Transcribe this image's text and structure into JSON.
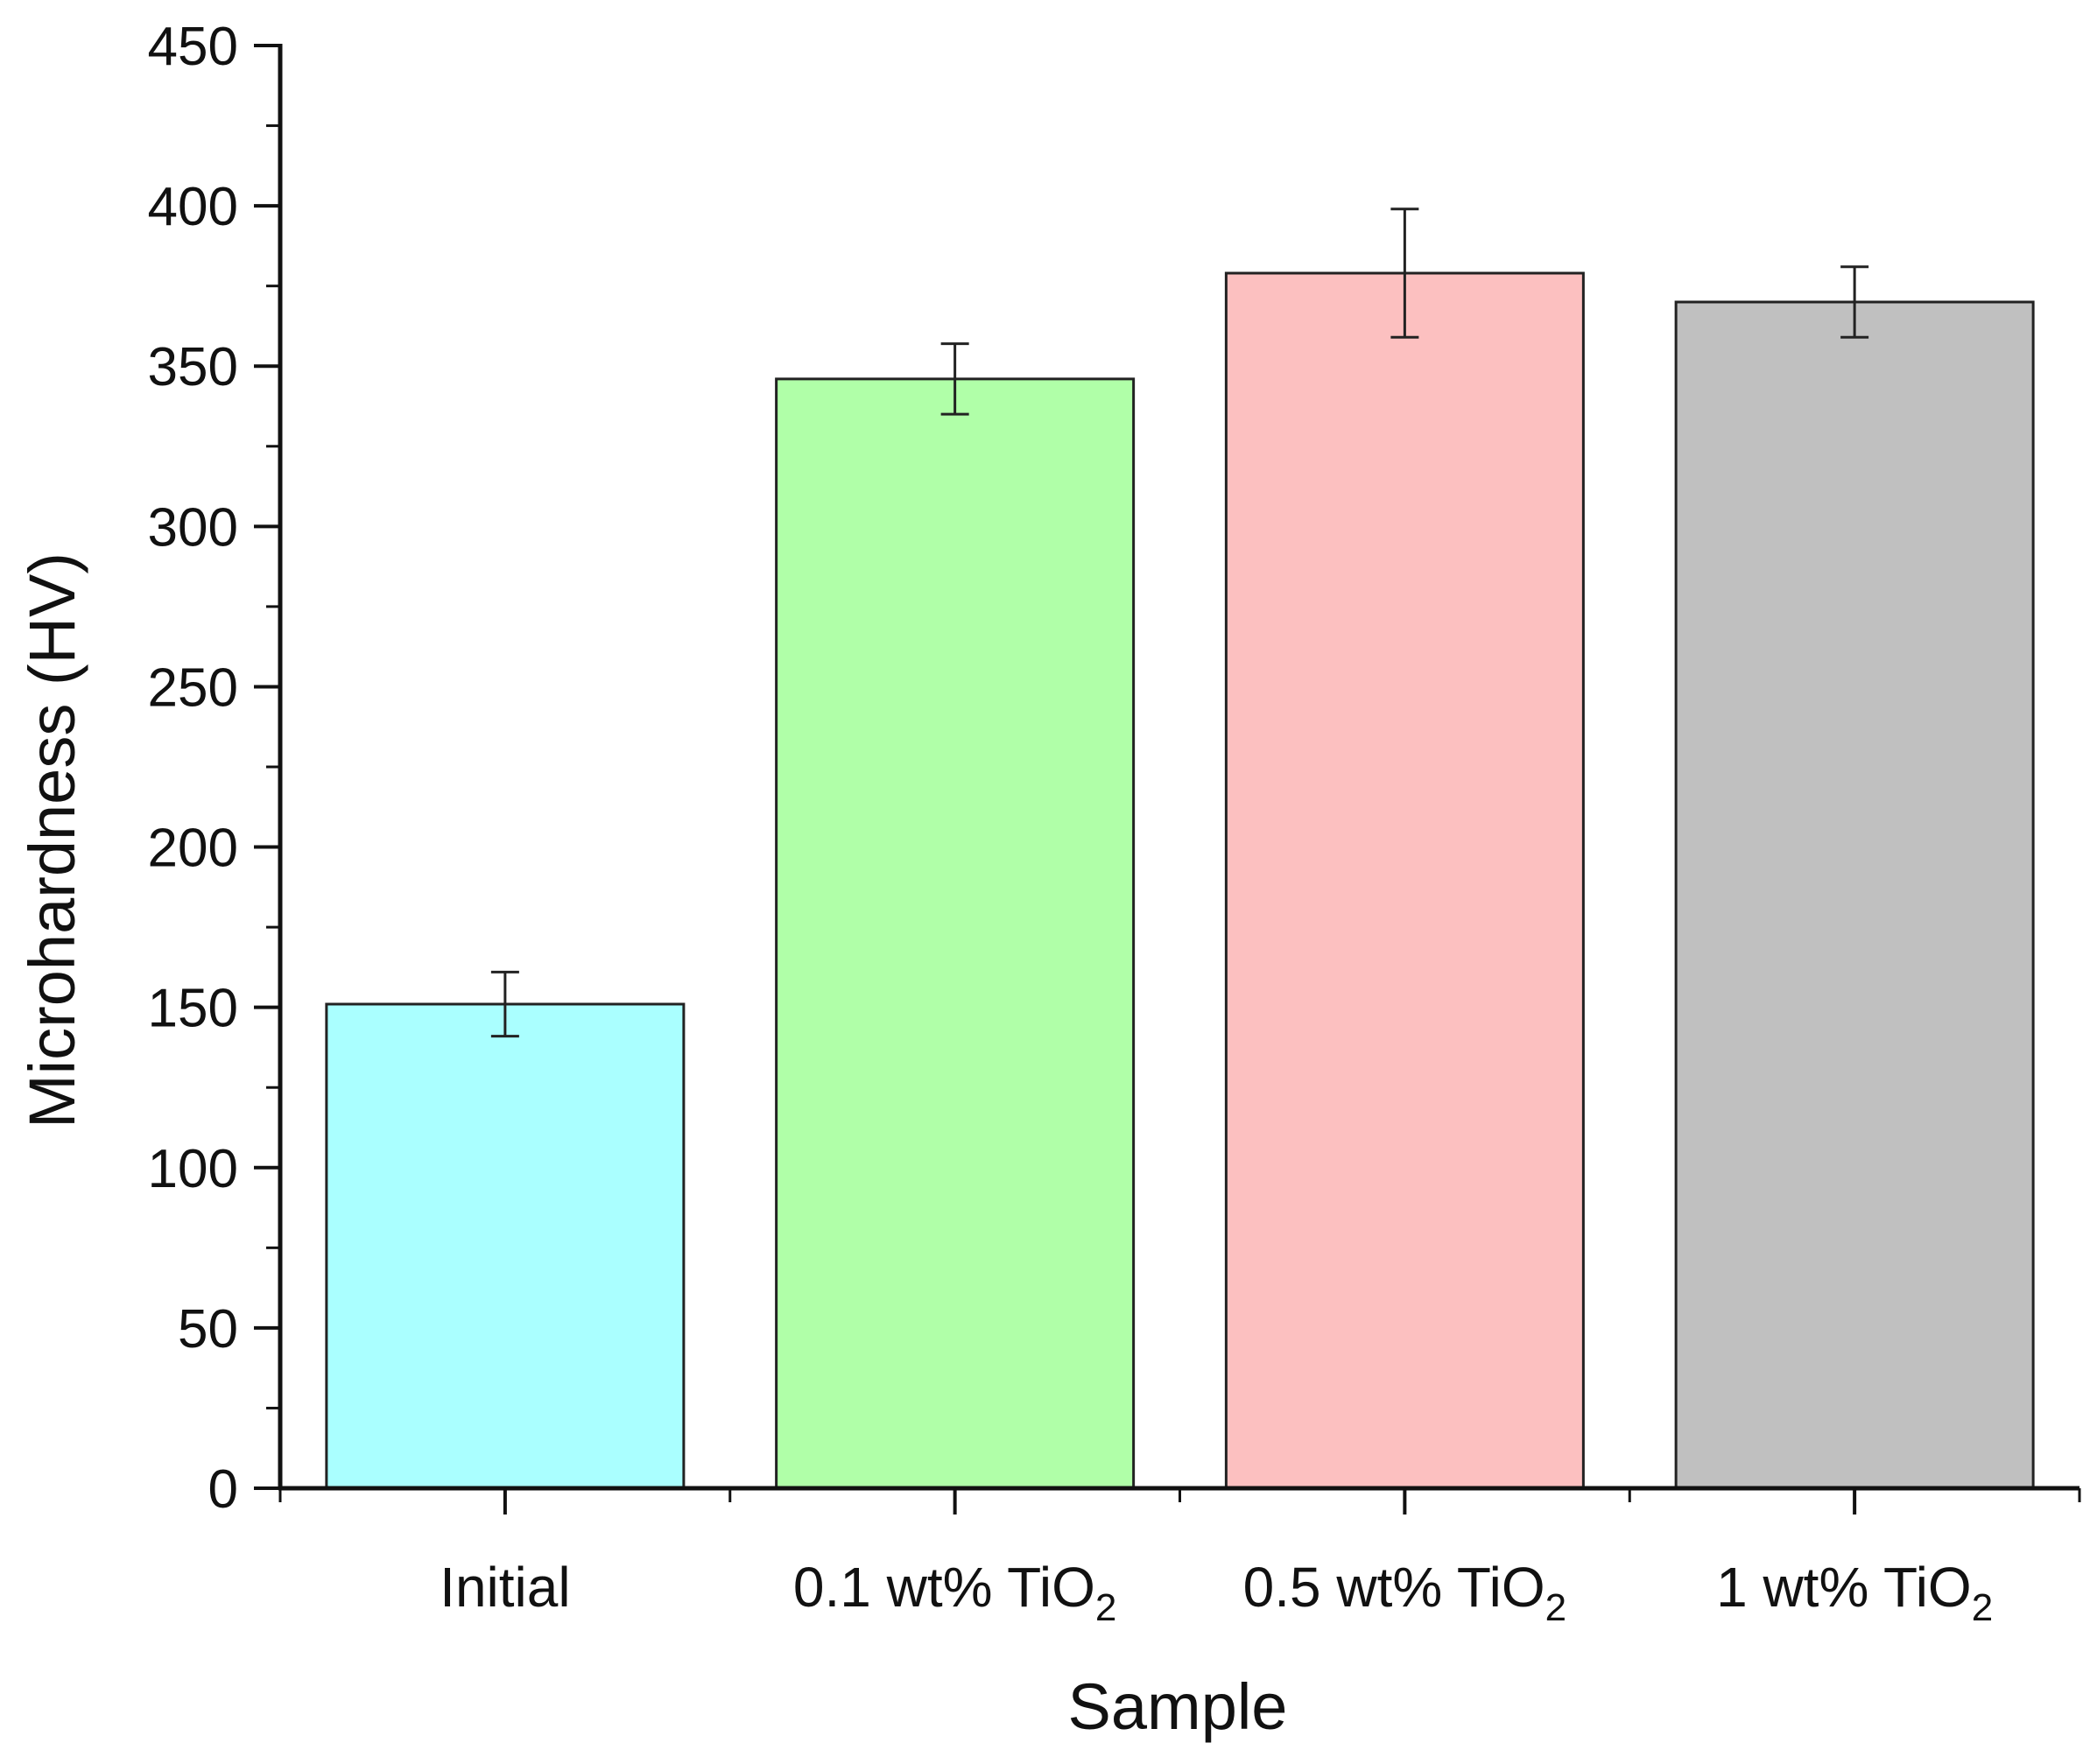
{
  "chart_data": {
    "type": "bar",
    "title": "",
    "xlabel": "Sample",
    "ylabel": "Microhardness (HV)",
    "ylim": [
      0,
      450
    ],
    "yticks": [
      0,
      50,
      100,
      150,
      200,
      250,
      300,
      350,
      400,
      450
    ],
    "yminor_step": 25,
    "grid": false,
    "legend": "none",
    "categories": [
      {
        "base": "Initial",
        "sub": ""
      },
      {
        "base": "0.1 wt% TiO",
        "sub": "2"
      },
      {
        "base": "0.5 wt% TiO",
        "sub": "2"
      },
      {
        "base": "1 wt% TiO",
        "sub": "2"
      }
    ],
    "values": [
      151,
      346,
      379,
      370
    ],
    "errors": [
      10,
      11,
      20,
      11
    ],
    "colors": [
      "#aaffff",
      "#b0ffa8",
      "#fcc0c0",
      "#c0c0c0"
    ],
    "edge_color": "#222222"
  }
}
